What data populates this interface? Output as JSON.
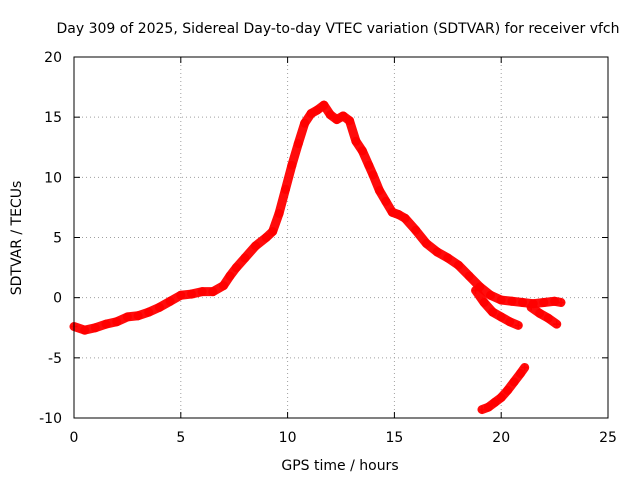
{
  "chart_data": {
    "type": "scatter",
    "title": "Day 309 of 2025, Sidereal Day-to-day VTEC variation (SDTVAR) for receiver vfch",
    "xlabel": "GPS time / hours",
    "ylabel": "SDTVAR / TECUs",
    "xlim": [
      0,
      25
    ],
    "ylim": [
      -10,
      20
    ],
    "xticks": [
      0,
      5,
      10,
      15,
      20,
      25
    ],
    "yticks": [
      -10,
      -5,
      0,
      5,
      10,
      15,
      20
    ],
    "xtick_labels": [
      "0",
      "5",
      "10",
      "15",
      "20",
      "25"
    ],
    "ytick_labels": [
      "-10",
      "-5",
      "0",
      "5",
      "10",
      "15",
      "20"
    ],
    "grid": true,
    "marker": "+",
    "color": "#ff0000",
    "series": [
      {
        "name": "main band",
        "points": [
          [
            0.0,
            -2.4
          ],
          [
            0.5,
            -2.7
          ],
          [
            1.0,
            -2.5
          ],
          [
            1.5,
            -2.2
          ],
          [
            2.0,
            -2.0
          ],
          [
            2.5,
            -1.6
          ],
          [
            3.0,
            -1.5
          ],
          [
            3.5,
            -1.2
          ],
          [
            4.0,
            -0.8
          ],
          [
            4.5,
            -0.3
          ],
          [
            5.0,
            0.2
          ],
          [
            5.5,
            0.3
          ],
          [
            6.0,
            0.5
          ],
          [
            6.5,
            0.5
          ],
          [
            7.0,
            1.0
          ],
          [
            7.3,
            1.8
          ],
          [
            7.6,
            2.5
          ],
          [
            8.0,
            3.3
          ],
          [
            8.5,
            4.3
          ],
          [
            9.0,
            5.0
          ],
          [
            9.3,
            5.5
          ],
          [
            9.6,
            7.0
          ],
          [
            9.9,
            9.0
          ],
          [
            10.2,
            11.0
          ],
          [
            10.5,
            12.8
          ],
          [
            10.8,
            14.5
          ],
          [
            11.1,
            15.3
          ],
          [
            11.4,
            15.6
          ],
          [
            11.7,
            16.0
          ],
          [
            12.0,
            15.2
          ],
          [
            12.3,
            14.8
          ],
          [
            12.6,
            15.1
          ],
          [
            12.9,
            14.7
          ],
          [
            13.2,
            13.0
          ],
          [
            13.5,
            12.2
          ],
          [
            13.8,
            11.0
          ],
          [
            14.0,
            10.2
          ],
          [
            14.3,
            8.9
          ],
          [
            14.6,
            8.0
          ],
          [
            14.9,
            7.1
          ],
          [
            15.2,
            6.9
          ],
          [
            15.5,
            6.6
          ],
          [
            16.0,
            5.6
          ],
          [
            16.5,
            4.5
          ],
          [
            17.0,
            3.8
          ],
          [
            17.5,
            3.3
          ],
          [
            18.0,
            2.7
          ],
          [
            18.5,
            1.8
          ],
          [
            19.0,
            0.9
          ],
          [
            19.5,
            0.2
          ],
          [
            20.0,
            -0.2
          ],
          [
            20.5,
            -0.3
          ],
          [
            21.0,
            -0.4
          ],
          [
            21.5,
            -0.5
          ],
          [
            22.0,
            -0.4
          ],
          [
            22.5,
            -0.3
          ],
          [
            22.8,
            -0.4
          ]
        ]
      },
      {
        "name": "lower branch A",
        "points": [
          [
            18.8,
            0.6
          ],
          [
            19.2,
            -0.4
          ],
          [
            19.6,
            -1.2
          ],
          [
            20.0,
            -1.6
          ],
          [
            20.4,
            -2.0
          ],
          [
            20.8,
            -2.3
          ]
        ]
      },
      {
        "name": "lower branch B",
        "points": [
          [
            21.4,
            -0.8
          ],
          [
            21.8,
            -1.3
          ],
          [
            22.2,
            -1.7
          ],
          [
            22.6,
            -2.2
          ]
        ]
      },
      {
        "name": "isolated arc",
        "points": [
          [
            19.1,
            -9.3
          ],
          [
            19.4,
            -9.1
          ],
          [
            19.7,
            -8.7
          ],
          [
            20.0,
            -8.3
          ],
          [
            20.3,
            -7.7
          ],
          [
            20.6,
            -7.0
          ],
          [
            20.9,
            -6.3
          ],
          [
            21.1,
            -5.8
          ]
        ]
      }
    ]
  }
}
